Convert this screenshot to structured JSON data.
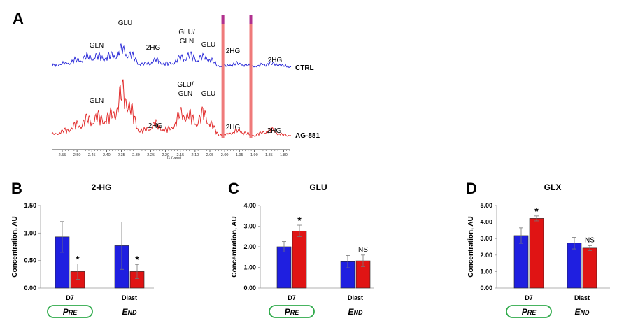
{
  "colors": {
    "ctrl": "#1f1fd6",
    "treated": "#e01e1e",
    "bar_blue": "#1f1fe0",
    "bar_red": "#e01414",
    "pill": "#2eaa4a",
    "magenta": "#b0308f"
  },
  "panel_a": {
    "letter": "A",
    "axis_caption": "f1 (ppm)",
    "ppm_ticks": [
      "2.55",
      "2.50",
      "2.45",
      "2.40",
      "2.35",
      "2.30",
      "2.25",
      "2.20",
      "2.15",
      "2.10",
      "2.05",
      "2.00",
      "1.95",
      "1.90",
      "1.85",
      "1.80"
    ],
    "ctrl": {
      "name": "CTRL",
      "peaks": [
        {
          "id": "gln",
          "lines": [
            "GLN"
          ]
        },
        {
          "id": "glu",
          "lines": [
            "GLU"
          ]
        },
        {
          "id": "hg1",
          "lines": [
            "2HG"
          ]
        },
        {
          "id": "gluGln",
          "lines": [
            "GLU/",
            "GLN"
          ]
        },
        {
          "id": "glu2",
          "lines": [
            "GLU"
          ]
        },
        {
          "id": "hg2",
          "lines": [
            "2HG"
          ]
        },
        {
          "id": "hg3",
          "lines": [
            "2HG"
          ]
        }
      ]
    },
    "treated": {
      "name": "AG-881",
      "peaks": [
        {
          "id": "gln",
          "lines": [
            "GLN"
          ]
        },
        {
          "id": "hg1",
          "lines": [
            "2HG"
          ]
        },
        {
          "id": "gluGln",
          "lines": [
            "GLU/",
            "GLN"
          ]
        },
        {
          "id": "glu2",
          "lines": [
            "GLU"
          ]
        },
        {
          "id": "hg2",
          "lines": [
            "2HG"
          ]
        },
        {
          "id": "hg3",
          "lines": [
            "2HG"
          ]
        }
      ]
    }
  },
  "chart_data": [
    {
      "type": "bar",
      "panel": "B",
      "title": "2-HG",
      "ylabel": "Concentration, AU",
      "ylim": [
        0,
        1.5
      ],
      "yticks": [
        "0.00",
        "0.50",
        "1.00",
        "1.50"
      ],
      "categories": [
        "D7",
        "Dlast"
      ],
      "series": [
        {
          "name": "CTRL",
          "values": [
            0.93,
            0.77
          ],
          "errors": [
            0.28,
            0.43
          ]
        },
        {
          "name": "AG-881",
          "values": [
            0.3,
            0.3
          ],
          "errors": [
            0.14,
            0.13
          ]
        }
      ],
      "annotations": [
        [
          "",
          "*"
        ],
        [
          "",
          "*"
        ]
      ],
      "phases": [
        {
          "label": "Pre",
          "boxed": true
        },
        {
          "label": "End",
          "boxed": false
        }
      ]
    },
    {
      "type": "bar",
      "panel": "C",
      "title": "GLU",
      "ylabel": "Concentration, AU",
      "ylim": [
        0,
        4
      ],
      "yticks": [
        "0.00",
        "1.00",
        "2.00",
        "3.00",
        "4.00"
      ],
      "categories": [
        "D7",
        "Dlast"
      ],
      "series": [
        {
          "name": "CTRL",
          "values": [
            2.0,
            1.28
          ],
          "errors": [
            0.25,
            0.3
          ]
        },
        {
          "name": "AG-881",
          "values": [
            2.77,
            1.32
          ],
          "errors": [
            0.28,
            0.28
          ]
        }
      ],
      "annotations": [
        [
          "",
          "*"
        ],
        [
          "",
          "NS"
        ]
      ],
      "phases": [
        {
          "label": "Pre",
          "boxed": true
        },
        {
          "label": "End",
          "boxed": false
        }
      ]
    },
    {
      "type": "bar",
      "panel": "D",
      "title": "GLX",
      "ylabel": "Concentration, AU",
      "ylim": [
        0,
        5
      ],
      "yticks": [
        "0.00",
        "1.00",
        "2.00",
        "3.00",
        "4.00",
        "5.00"
      ],
      "categories": [
        "D7",
        "Dlast"
      ],
      "series": [
        {
          "name": "CTRL",
          "values": [
            3.18,
            2.72
          ],
          "errors": [
            0.47,
            0.35
          ]
        },
        {
          "name": "AG-881",
          "values": [
            4.22,
            2.42
          ],
          "errors": [
            0.15,
            0.15
          ]
        }
      ],
      "annotations": [
        [
          "",
          "*"
        ],
        [
          "",
          "NS"
        ]
      ],
      "phases": [
        {
          "label": "Pre",
          "boxed": true
        },
        {
          "label": "End",
          "boxed": false
        }
      ]
    }
  ]
}
